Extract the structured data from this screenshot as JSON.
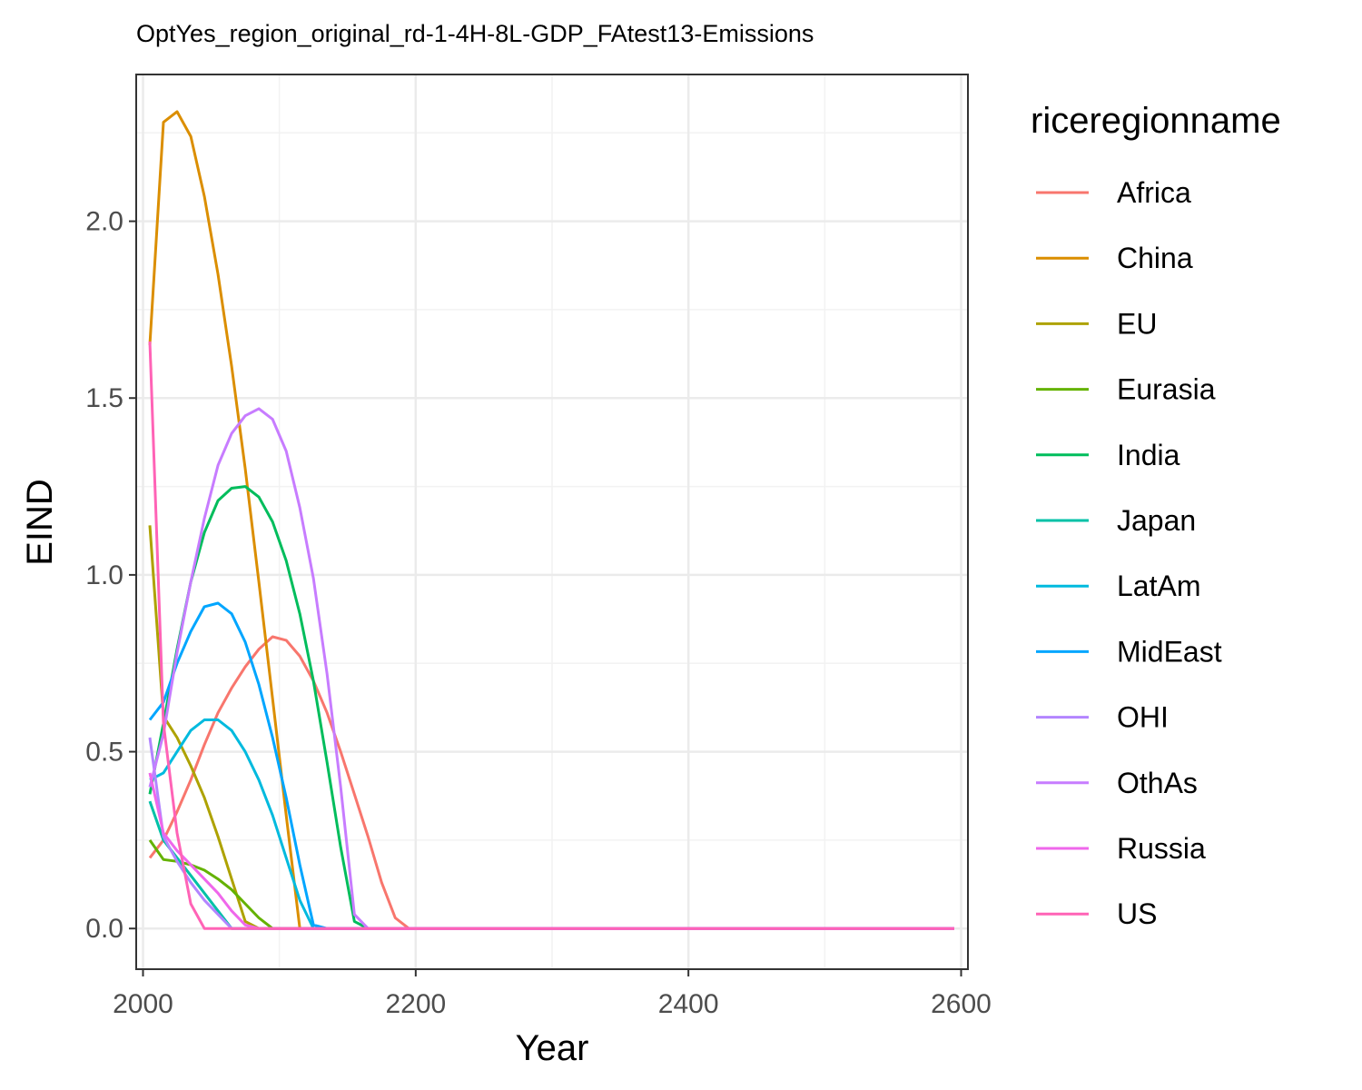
{
  "chart_data": {
    "type": "line",
    "title": "OptYes_region_original_rd-1-4H-8L-GDP_FAtest13-Emissions",
    "xlabel": "Year",
    "ylabel": "EIND",
    "xlim": [
      1995,
      2605
    ],
    "ylim": [
      -0.115,
      2.415
    ],
    "x_ticks": [
      2000,
      2200,
      2400,
      2600
    ],
    "x_tick_labels": [
      "2000",
      "2200",
      "2400",
      "2600"
    ],
    "y_ticks": [
      0.0,
      0.5,
      1.0,
      1.5,
      2.0
    ],
    "y_tick_labels": [
      "0.0",
      "0.5",
      "1.0",
      "1.5",
      "2.0"
    ],
    "grid": true,
    "legend": {
      "title": "riceregionname",
      "position": "right"
    },
    "series": [
      {
        "name": "Africa",
        "color": "#F8766D",
        "x": [
          2005,
          2015,
          2025,
          2035,
          2045,
          2055,
          2065,
          2075,
          2085,
          2095,
          2105,
          2115,
          2125,
          2135,
          2145,
          2155,
          2165,
          2175,
          2185,
          2195,
          2595
        ],
        "y": [
          0.2,
          0.25,
          0.33,
          0.42,
          0.52,
          0.61,
          0.68,
          0.74,
          0.79,
          0.825,
          0.815,
          0.77,
          0.7,
          0.61,
          0.5,
          0.38,
          0.26,
          0.13,
          0.03,
          0.0,
          0.0
        ]
      },
      {
        "name": "China",
        "color": "#DB8E00",
        "x": [
          2005,
          2015,
          2025,
          2035,
          2045,
          2055,
          2065,
          2075,
          2085,
          2095,
          2105,
          2115,
          2125,
          2595
        ],
        "y": [
          1.65,
          2.28,
          2.31,
          2.24,
          2.07,
          1.85,
          1.59,
          1.3,
          0.98,
          0.65,
          0.32,
          0.0,
          0.0,
          0.0
        ]
      },
      {
        "name": "EU",
        "color": "#AEA200",
        "x": [
          2005,
          2015,
          2025,
          2035,
          2045,
          2055,
          2065,
          2075,
          2085,
          2595
        ],
        "y": [
          1.14,
          0.6,
          0.54,
          0.46,
          0.37,
          0.26,
          0.14,
          0.02,
          0.0,
          0.0
        ]
      },
      {
        "name": "Eurasia",
        "color": "#64B200",
        "x": [
          2005,
          2015,
          2025,
          2035,
          2045,
          2055,
          2065,
          2075,
          2085,
          2095,
          2105,
          2595
        ],
        "y": [
          0.25,
          0.195,
          0.19,
          0.18,
          0.165,
          0.14,
          0.11,
          0.07,
          0.03,
          0.0,
          0.0,
          0.0
        ]
      },
      {
        "name": "India",
        "color": "#00BD5C",
        "x": [
          2005,
          2015,
          2025,
          2035,
          2045,
          2055,
          2065,
          2075,
          2085,
          2095,
          2105,
          2115,
          2125,
          2135,
          2145,
          2155,
          2165,
          2595
        ],
        "y": [
          0.38,
          0.58,
          0.79,
          0.98,
          1.12,
          1.21,
          1.245,
          1.25,
          1.22,
          1.15,
          1.04,
          0.89,
          0.7,
          0.47,
          0.23,
          0.02,
          0.0,
          0.0
        ]
      },
      {
        "name": "Japan",
        "color": "#00C1A7",
        "x": [
          2005,
          2015,
          2025,
          2035,
          2045,
          2055,
          2065,
          2595
        ],
        "y": [
          0.36,
          0.25,
          0.2,
          0.15,
          0.1,
          0.05,
          0.0,
          0.0
        ]
      },
      {
        "name": "LatAm",
        "color": "#00BADE",
        "x": [
          2005,
          2015,
          2025,
          2035,
          2045,
          2055,
          2065,
          2075,
          2085,
          2095,
          2105,
          2115,
          2125,
          2135,
          2595
        ],
        "y": [
          0.42,
          0.44,
          0.5,
          0.56,
          0.59,
          0.59,
          0.56,
          0.5,
          0.42,
          0.32,
          0.2,
          0.08,
          0.0,
          0.0,
          0.0
        ]
      },
      {
        "name": "MidEast",
        "color": "#00A6FF",
        "x": [
          2005,
          2015,
          2025,
          2035,
          2045,
          2055,
          2065,
          2075,
          2085,
          2095,
          2105,
          2115,
          2125,
          2135,
          2595
        ],
        "y": [
          0.59,
          0.64,
          0.75,
          0.84,
          0.91,
          0.92,
          0.89,
          0.81,
          0.69,
          0.54,
          0.37,
          0.18,
          0.01,
          0.0,
          0.0
        ]
      },
      {
        "name": "OHI",
        "color": "#B385FF",
        "x": [
          2005,
          2015,
          2025,
          2035,
          2045,
          2055,
          2065,
          2075,
          2595
        ],
        "y": [
          0.54,
          0.26,
          0.19,
          0.13,
          0.08,
          0.04,
          0.0,
          0.0,
          0.0
        ]
      },
      {
        "name": "OthAs",
        "color": "#C77CFF",
        "x": [
          2005,
          2015,
          2025,
          2035,
          2045,
          2055,
          2065,
          2075,
          2085,
          2095,
          2105,
          2115,
          2125,
          2135,
          2145,
          2155,
          2165,
          2595
        ],
        "y": [
          0.4,
          0.55,
          0.78,
          0.98,
          1.16,
          1.31,
          1.4,
          1.45,
          1.47,
          1.44,
          1.35,
          1.19,
          0.99,
          0.72,
          0.4,
          0.04,
          0.0,
          0.0
        ]
      },
      {
        "name": "Russia",
        "color": "#EF67EB",
        "x": [
          2005,
          2015,
          2025,
          2035,
          2045,
          2055,
          2065,
          2075,
          2085,
          2595
        ],
        "y": [
          0.44,
          0.27,
          0.22,
          0.18,
          0.14,
          0.1,
          0.05,
          0.01,
          0.0,
          0.0
        ]
      },
      {
        "name": "US",
        "color": "#FF63B6",
        "x": [
          2005,
          2015,
          2025,
          2035,
          2045,
          2055,
          2595
        ],
        "y": [
          1.66,
          0.58,
          0.27,
          0.07,
          0.0,
          0.0,
          0.0
        ]
      }
    ]
  }
}
